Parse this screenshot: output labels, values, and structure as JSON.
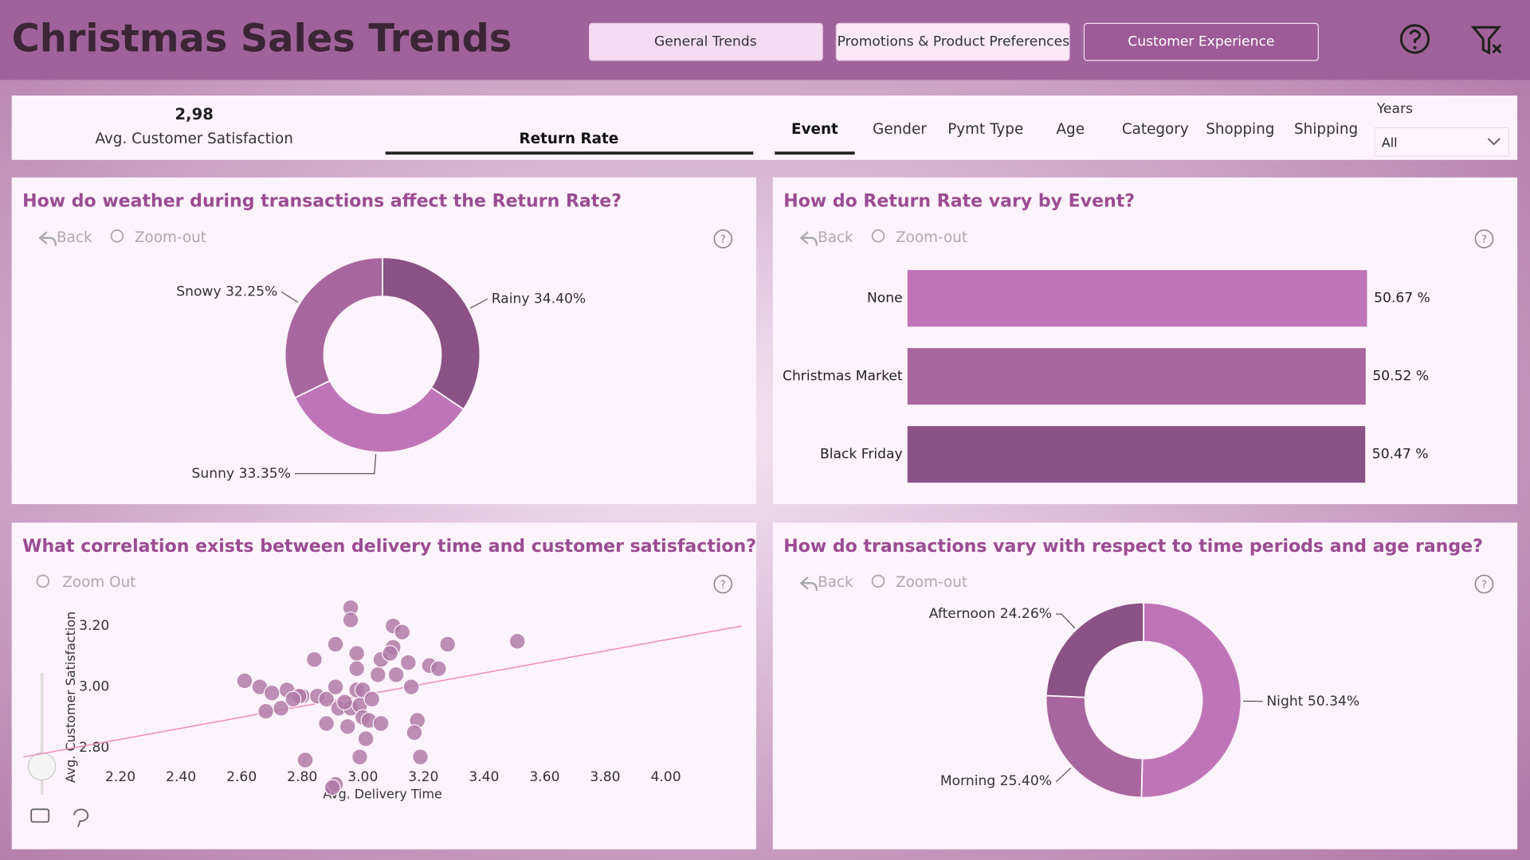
{
  "header": {
    "title": "Christmas Sales Trends",
    "nav": [
      "General Trends",
      "Promotions & Product Preferences",
      "Customer Experience"
    ]
  },
  "kpi": {
    "value": "2,98",
    "label": "Avg. Customer Satisfaction"
  },
  "measure_tab": "Return Rate",
  "dimension_tabs": [
    "Event",
    "Gender",
    "Pymt Type",
    "Age",
    "Category",
    "Shopping",
    "Shipping"
  ],
  "slicer": {
    "label": "Years",
    "value": "All"
  },
  "toolbar": {
    "back": "Back",
    "zoom_out": "Zoom-out",
    "zoom_out_scatter": "Zoom Out"
  },
  "chart_data": [
    {
      "type": "pie",
      "title": "How do weather during transactions affect the Return Rate?",
      "categories": [
        "Rainy",
        "Sunny",
        "Snowy"
      ],
      "values": [
        34.4,
        33.35,
        32.25
      ],
      "value_labels": [
        "34.40%",
        "33.35%",
        "32.25%"
      ],
      "colors": [
        "#8a5285",
        "#c074b8",
        "#a8669f"
      ]
    },
    {
      "type": "bar",
      "orientation": "horizontal",
      "title": "How do Return Rate vary by Event?",
      "categories": [
        "None",
        "Christmas Market",
        "Black Friday"
      ],
      "values": [
        50.67,
        50.52,
        50.47
      ],
      "value_labels": [
        "50.67 %",
        "50.52 %",
        "50.47 %"
      ],
      "colors": [
        "#c074b8",
        "#a8669f",
        "#8a5285"
      ],
      "xlim": [
        0,
        50.67
      ]
    },
    {
      "type": "scatter",
      "title": "What correlation exists between delivery time and customer satisfaction?",
      "x_label": "Avg. Delivery Time",
      "y_label": "Avg. Customer Satisfaction",
      "color": "#b07aa8",
      "x": [
        2.96,
        2.96,
        3.1,
        3.28,
        3.51,
        2.91,
        2.98,
        3.13,
        2.84,
        3.1,
        3.15,
        2.98,
        3.06,
        3.22,
        3.25,
        3.05,
        3.11,
        2.61,
        2.66,
        2.7,
        2.75,
        2.8,
        2.85,
        2.88,
        2.91,
        2.98,
        3.0,
        2.92,
        2.96,
        2.99,
        3.03,
        3.16,
        2.73,
        2.68,
        2.88,
        2.95,
        3.0,
        3.02,
        3.06,
        3.18,
        3.17,
        3.01,
        2.99,
        2.81,
        3.19,
        2.91,
        2.9,
        2.79,
        2.77,
        3.09,
        2.94
      ],
      "values": [
        3.26,
        3.22,
        3.2,
        3.14,
        3.15,
        3.14,
        3.11,
        3.18,
        3.09,
        3.13,
        3.08,
        3.06,
        3.09,
        3.07,
        3.06,
        3.04,
        3.04,
        3.02,
        3.0,
        2.98,
        2.99,
        2.97,
        2.97,
        2.96,
        3.0,
        2.99,
        2.99,
        2.93,
        2.93,
        2.94,
        2.96,
        3.0,
        2.93,
        2.92,
        2.88,
        2.87,
        2.9,
        2.89,
        2.88,
        2.89,
        2.85,
        2.83,
        2.77,
        2.76,
        2.77,
        2.68,
        2.67,
        2.97,
        2.96,
        3.11,
        2.95
      ],
      "trendline": {
        "x": [
          1.88,
          4.25
        ],
        "values": [
          2.77,
          3.2
        ],
        "color": "#f08ab8"
      },
      "xlim": [
        1.88,
        4.25
      ],
      "ylim": [
        2.66,
        3.3
      ],
      "xticks": [
        {
          "value": 2.2,
          "label": "2.20"
        },
        {
          "value": 2.4,
          "label": "2.40"
        },
        {
          "value": 2.6,
          "label": "2.60"
        },
        {
          "value": 2.8,
          "label": "2.80"
        },
        {
          "value": 3.0,
          "label": "3.00"
        },
        {
          "value": 3.2,
          "label": "3.20"
        },
        {
          "value": 3.4,
          "label": "3.40"
        },
        {
          "value": 3.6,
          "label": "3.60"
        },
        {
          "value": 3.8,
          "label": "3.80"
        },
        {
          "value": 4.0,
          "label": "4.00"
        }
      ],
      "yticks": [
        {
          "value": 2.8,
          "label": "2.80"
        },
        {
          "value": 3.0,
          "label": "3.00"
        },
        {
          "value": 3.2,
          "label": "3.20"
        }
      ]
    },
    {
      "type": "pie",
      "title": "How do transactions vary with respect to time periods and age range?",
      "categories": [
        "Night",
        "Morning",
        "Afternoon"
      ],
      "values": [
        50.34,
        25.4,
        24.26
      ],
      "value_labels": [
        "50.34%",
        "25.40%",
        "24.26%"
      ],
      "colors": [
        "#c074b8",
        "#a8669f",
        "#8a5285"
      ]
    }
  ]
}
